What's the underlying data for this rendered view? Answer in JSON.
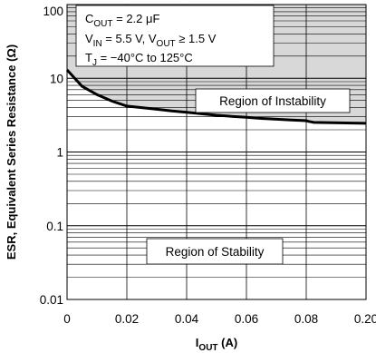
{
  "chart_data": {
    "type": "line",
    "xlabel": {
      "main": "I",
      "sub": "OUT",
      "unit": " (A)"
    },
    "ylabel": "ESR, Equivalent Series Resistance (Ω)",
    "xlim": [
      0,
      0.2
    ],
    "ylim": [
      0.01,
      100
    ],
    "yscale": "log",
    "x_ticks": [
      {
        "value": 0,
        "label": "0"
      },
      {
        "value": 0.02,
        "label": "0.02"
      },
      {
        "value": 0.04,
        "label": "0.04"
      },
      {
        "value": 0.06,
        "label": "0.06"
      },
      {
        "value": 0.08,
        "label": "0.08"
      },
      {
        "value": 0.2,
        "label": "0.20"
      }
    ],
    "y_ticks": [
      {
        "value": 100,
        "label": "100"
      },
      {
        "value": 10,
        "label": "10"
      },
      {
        "value": 1,
        "label": "1"
      },
      {
        "value": 0.1,
        "label": "0.1"
      },
      {
        "value": 0.01,
        "label": "0.01"
      }
    ],
    "grid": true,
    "series": [
      {
        "x": [
          0,
          0.005,
          0.01,
          0.015,
          0.02,
          0.025,
          0.03,
          0.035,
          0.04,
          0.045,
          0.05,
          0.055,
          0.06,
          0.065,
          0.07,
          0.075,
          0.08,
          0.085,
          0.09,
          0.095,
          0.2
        ],
        "values": [
          13,
          7.8,
          6.0,
          4.9,
          4.2,
          4.0,
          3.8,
          3.6,
          3.45,
          3.3,
          3.15,
          3.05,
          2.95,
          2.85,
          2.78,
          2.72,
          2.66,
          2.6,
          2.56,
          2.52,
          2.45
        ]
      }
    ],
    "conditions": [
      {
        "main": "C",
        "sub": "OUT",
        "rest": " = 2.2 μF"
      },
      {
        "main": "V",
        "sub": "IN",
        "rest": " = 5.5 V, V",
        "sub2": "OUT",
        "rest2": " ≥ 1.5 V"
      },
      {
        "main": "T",
        "sub": "J",
        "rest": " = −40°C to 125°C"
      }
    ],
    "regions": {
      "instability": "Region of Instability",
      "stability": "Region of Stability"
    },
    "colors": {
      "shade": "#d8d8d8",
      "curve": "#000000",
      "grid": "#000000"
    }
  }
}
